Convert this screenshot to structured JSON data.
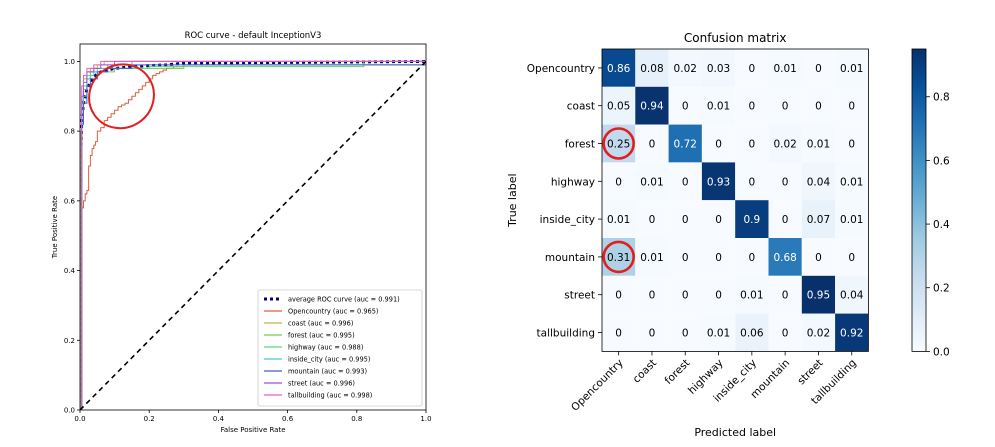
{
  "colors": {
    "average": "#000080",
    "diagonal": "#000000",
    "annotation_circle": "#e02020",
    "colormap_low": "#f7fbff",
    "colormap_high": "#08306b"
  },
  "chart_data": [
    {
      "type": "line",
      "title": "ROC curve - default InceptionV3",
      "xlabel": "False Positive Rate",
      "ylabel": "True Positive Rate",
      "xlim": [
        0.0,
        1.0
      ],
      "ylim": [
        0.0,
        1.05
      ],
      "xticks": [
        0.0,
        0.2,
        0.4,
        0.6,
        0.8,
        1.0
      ],
      "xtick_labels": [
        "0.0",
        "0.2",
        "0.4",
        "0.6",
        "0.8",
        "1.0"
      ],
      "yticks": [
        0.0,
        0.2,
        0.4,
        0.6,
        0.8,
        1.0
      ],
      "ytick_labels": [
        "0.0",
        "0.2",
        "0.4",
        "0.6",
        "0.8",
        "1.0"
      ],
      "grid": false,
      "legend_position": "lower-right",
      "diagonal_reference": true,
      "series": [
        {
          "name": "average ROC curve (auc = 0.991)",
          "color": "#000080",
          "style": "dotted",
          "x": [
            0,
            0.002,
            0.005,
            0.01,
            0.015,
            0.02,
            0.03,
            0.04,
            0.05,
            0.06,
            0.08,
            0.1,
            0.12,
            0.15,
            0.2,
            0.25,
            0.3,
            1.0
          ],
          "y": [
            0,
            0.72,
            0.83,
            0.88,
            0.9,
            0.92,
            0.94,
            0.955,
            0.965,
            0.97,
            0.975,
            0.98,
            0.982,
            0.985,
            0.988,
            0.99,
            0.995,
            1.0
          ]
        },
        {
          "name": "Opencountry (auc = 0.965)",
          "color": "#d9603b",
          "style": "step",
          "x": [
            0,
            0.005,
            0.01,
            0.015,
            0.02,
            0.025,
            0.03,
            0.035,
            0.04,
            0.045,
            0.05,
            0.06,
            0.07,
            0.08,
            0.09,
            0.1,
            0.11,
            0.12,
            0.13,
            0.14,
            0.15,
            0.16,
            0.17,
            0.18,
            0.19,
            0.2,
            0.21,
            0.22,
            0.23,
            0.24,
            0.25,
            0.27,
            0.3,
            1.0
          ],
          "y": [
            0,
            0.58,
            0.6,
            0.62,
            0.63,
            0.7,
            0.73,
            0.75,
            0.76,
            0.77,
            0.8,
            0.81,
            0.83,
            0.84,
            0.85,
            0.86,
            0.87,
            0.875,
            0.88,
            0.89,
            0.9,
            0.91,
            0.92,
            0.93,
            0.94,
            0.95,
            0.96,
            0.965,
            0.97,
            0.975,
            0.98,
            0.985,
            0.99,
            1.0
          ]
        },
        {
          "name": "coast (auc = 0.996)",
          "color": "#c8b43c",
          "style": "step",
          "x": [
            0,
            0.005,
            0.01,
            0.02,
            0.03,
            0.05,
            0.07,
            1.0
          ],
          "y": [
            0,
            0.9,
            0.95,
            0.97,
            0.98,
            0.99,
            1.0,
            1.0
          ]
        },
        {
          "name": "forest (auc = 0.995)",
          "color": "#79c950",
          "style": "step",
          "x": [
            0,
            0.002,
            0.005,
            0.01,
            0.02,
            0.03,
            0.1,
            0.3,
            1.0
          ],
          "y": [
            0,
            0.8,
            0.88,
            0.92,
            0.95,
            0.97,
            0.98,
            0.99,
            1.0
          ]
        },
        {
          "name": "highway (auc = 0.988)",
          "color": "#5fd47f",
          "style": "step",
          "x": [
            0,
            0.005,
            0.01,
            0.02,
            0.03,
            0.05,
            0.1,
            0.2,
            0.4,
            0.6,
            0.82,
            1.0
          ],
          "y": [
            0,
            0.85,
            0.9,
            0.95,
            0.97,
            0.98,
            0.98,
            0.985,
            0.985,
            0.985,
            1.0,
            1.0
          ]
        },
        {
          "name": "inside_city (auc = 0.995)",
          "color": "#4cc9c0",
          "style": "step",
          "x": [
            0,
            0.005,
            0.01,
            0.02,
            0.04,
            0.08,
            0.15,
            1.0
          ],
          "y": [
            0,
            0.88,
            0.93,
            0.96,
            0.98,
            0.99,
            1.0,
            1.0
          ]
        },
        {
          "name": "mountain (auc = 0.993)",
          "color": "#3d5fc4",
          "style": "step",
          "x": [
            0,
            0.005,
            0.01,
            0.02,
            0.03,
            0.05,
            0.08,
            0.15,
            1.0
          ],
          "y": [
            0,
            0.82,
            0.88,
            0.93,
            0.95,
            0.97,
            0.98,
            0.99,
            1.0
          ]
        },
        {
          "name": "street (auc = 0.996)",
          "color": "#a04fd8",
          "style": "step",
          "x": [
            0,
            0.005,
            0.01,
            0.02,
            0.04,
            0.06,
            0.1,
            1.0
          ],
          "y": [
            0,
            0.9,
            0.94,
            0.97,
            0.98,
            0.99,
            1.0,
            1.0
          ]
        },
        {
          "name": "tallbuilding (auc = 0.998)",
          "color": "#e060c8",
          "style": "step",
          "x": [
            0,
            0.005,
            0.01,
            0.02,
            0.04,
            0.06,
            1.0
          ],
          "y": [
            0,
            0.93,
            0.96,
            0.98,
            0.99,
            1.0,
            1.0
          ]
        }
      ],
      "annotations": [
        {
          "type": "ellipse",
          "color": "#e02020",
          "center": [
            0.12,
            0.9
          ],
          "semi_axes": [
            0.095,
            0.09
          ]
        }
      ]
    },
    {
      "type": "heatmap",
      "title": "Confusion matrix",
      "xlabel": "Predicted label",
      "ylabel": "True label",
      "rows": [
        "Opencountry",
        "coast",
        "forest",
        "highway",
        "inside_city",
        "mountain",
        "street",
        "tallbuilding"
      ],
      "cols": [
        "Opencountry",
        "coast",
        "forest",
        "highway",
        "inside_city",
        "mountain",
        "street",
        "tallbuilding"
      ],
      "values": [
        [
          0.86,
          0.08,
          0.02,
          0.03,
          0.0,
          0.01,
          0.0,
          0.01
        ],
        [
          0.05,
          0.94,
          0.0,
          0.01,
          0.0,
          0.0,
          0.0,
          0.0
        ],
        [
          0.25,
          0.0,
          0.72,
          0.0,
          0.0,
          0.02,
          0.01,
          0.0
        ],
        [
          0.0,
          0.01,
          0.0,
          0.93,
          0.0,
          0.0,
          0.04,
          0.01
        ],
        [
          0.01,
          0.0,
          0.0,
          0.0,
          0.9,
          0.0,
          0.07,
          0.01
        ],
        [
          0.31,
          0.01,
          0.0,
          0.0,
          0.0,
          0.68,
          0.0,
          0.0
        ],
        [
          0.0,
          0.0,
          0.0,
          0.0,
          0.01,
          0.0,
          0.95,
          0.04
        ],
        [
          0.0,
          0.0,
          0.0,
          0.01,
          0.06,
          0.0,
          0.02,
          0.92
        ]
      ],
      "colorbar": {
        "min": 0.0,
        "max": 0.95,
        "ticks": [
          0.0,
          0.2,
          0.4,
          0.6,
          0.8
        ],
        "tick_labels": [
          "0.0",
          "0.2",
          "0.4",
          "0.6",
          "0.8"
        ]
      },
      "circled_cells": [
        [
          2,
          0
        ],
        [
          5,
          0
        ]
      ]
    }
  ]
}
